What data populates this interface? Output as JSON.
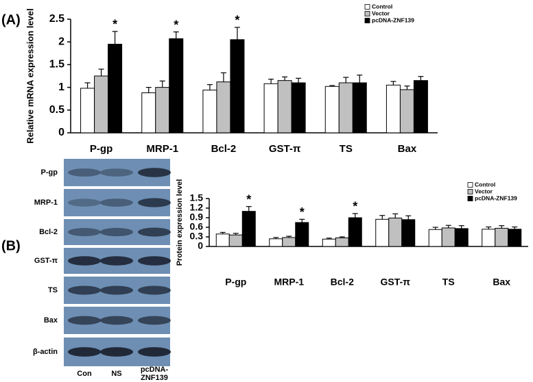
{
  "chart_data": [
    {
      "type": "bar",
      "panel_label": "(A)",
      "y_label": "Relative mRNA expression level",
      "categories": [
        "P-gp",
        "MRP-1",
        "Bcl-2",
        "GST-π",
        "TS",
        "Bax"
      ],
      "series": [
        {
          "name": "Control",
          "color": "#ffffff",
          "values": [
            0.98,
            0.88,
            0.94,
            1.08,
            1.02,
            1.05
          ],
          "errors": [
            0.12,
            0.12,
            0.12,
            0.1,
            0.02,
            0.08
          ],
          "annotations": [
            null,
            null,
            null,
            null,
            null,
            null
          ]
        },
        {
          "name": "Vector",
          "color": "#c0c0c0",
          "values": [
            1.25,
            1.0,
            1.12,
            1.15,
            1.1,
            0.95
          ],
          "errors": [
            0.15,
            0.14,
            0.2,
            0.08,
            0.12,
            0.08
          ],
          "annotations": [
            null,
            null,
            null,
            null,
            null,
            null
          ]
        },
        {
          "name": "pcDNA-ZNF139",
          "color": "#000000",
          "values": [
            1.95,
            2.07,
            2.05,
            1.1,
            1.1,
            1.15
          ],
          "errors": [
            0.28,
            0.15,
            0.27,
            0.1,
            0.17,
            0.09
          ],
          "annotations": [
            "*",
            "*",
            "*",
            null,
            null,
            null
          ]
        }
      ],
      "ylim": [
        0,
        2.5
      ],
      "yticks": [
        0,
        0.5,
        1,
        1.5,
        2,
        2.5
      ],
      "legend": "top-right"
    },
    {
      "type": "bar",
      "panel_label": "(B)",
      "y_label": "Protein expression level",
      "categories": [
        "P-gp",
        "MRP-1",
        "Bcl-2",
        "GST-π",
        "TS",
        "Bax"
      ],
      "series": [
        {
          "name": "Control",
          "color": "#ffffff",
          "values": [
            0.39,
            0.24,
            0.23,
            0.85,
            0.53,
            0.54
          ],
          "errors": [
            0.05,
            0.04,
            0.03,
            0.12,
            0.07,
            0.07
          ],
          "annotations": [
            null,
            null,
            null,
            null,
            null,
            null
          ]
        },
        {
          "name": "Vector",
          "color": "#c0c0c0",
          "values": [
            0.36,
            0.28,
            0.27,
            0.89,
            0.58,
            0.57
          ],
          "errors": [
            0.05,
            0.04,
            0.03,
            0.13,
            0.08,
            0.08
          ],
          "annotations": [
            null,
            null,
            null,
            null,
            null,
            null
          ]
        },
        {
          "name": "pcDNA-ZNF139",
          "color": "#000000",
          "values": [
            1.1,
            0.75,
            0.9,
            0.84,
            0.56,
            0.54
          ],
          "errors": [
            0.15,
            0.1,
            0.13,
            0.12,
            0.09,
            0.07
          ],
          "annotations": [
            "*",
            "*",
            "*",
            null,
            null,
            null
          ]
        }
      ],
      "ylim": [
        0,
        1.5
      ],
      "yticks": [
        0,
        0.3,
        0.6,
        0.9,
        1.2,
        1.5
      ],
      "legend": "top-right"
    }
  ],
  "blot": {
    "rows": [
      "P-gp",
      "MRP-1",
      "Bcl-2",
      "GST-π",
      "TS",
      "Bax",
      "β-actin"
    ],
    "lanes": [
      "Con",
      "NS",
      "pcDNA-ZNF139"
    ]
  }
}
